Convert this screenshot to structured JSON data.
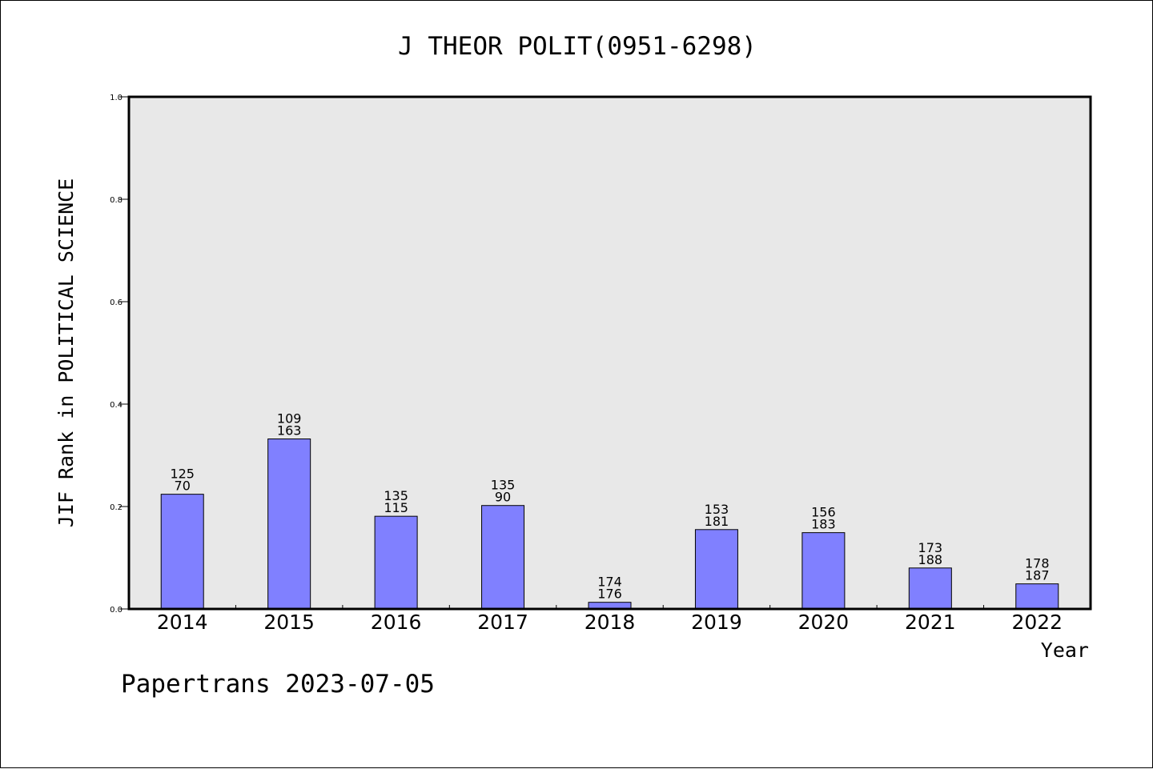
{
  "chart_data": {
    "type": "bar",
    "title": "J THEOR POLIT(0951-6298)",
    "xlabel": "Year",
    "ylabel": "JIF Rank in POLITICAL SCIENCE",
    "ylim": [
      0,
      1.0
    ],
    "yticks": [
      "0.0",
      "0.2",
      "0.4",
      "0.6",
      "0.8",
      "1.0"
    ],
    "grid": false,
    "categories": [
      "2014",
      "2015",
      "2016",
      "2017",
      "2018",
      "2019",
      "2020",
      "2021",
      "2022"
    ],
    "values": [
      0.224,
      0.332,
      0.181,
      0.202,
      0.013,
      0.155,
      0.149,
      0.08,
      0.049
    ],
    "labels_top": [
      "125",
      "109",
      "135",
      "135",
      "174",
      "153",
      "156",
      "173",
      "178"
    ],
    "labels_bottom": [
      "70",
      "163",
      "115",
      "90",
      "176",
      "181",
      "183",
      "188",
      "187"
    ],
    "colors": {
      "bar": "#8080ff",
      "plot_bg": "#e8e8e8"
    }
  },
  "footer": "Papertrans 2023-07-05"
}
